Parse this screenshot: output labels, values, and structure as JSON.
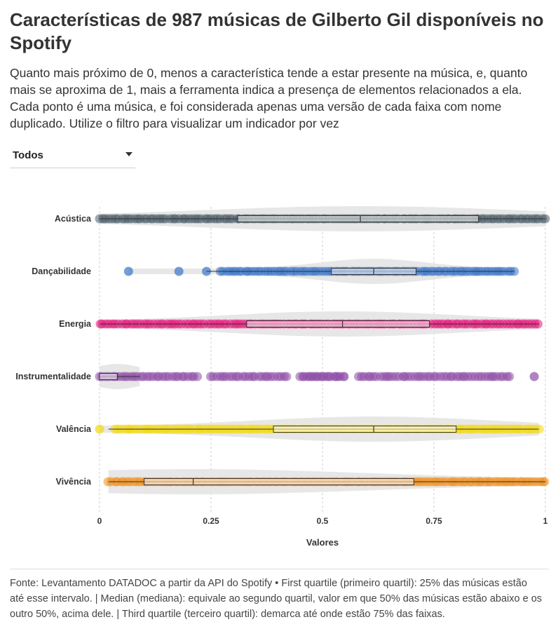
{
  "title": "Características de 987 músicas de Gilberto Gil disponíveis no Spotify",
  "subtitle": "Quanto mais próximo de 0, menos a característica tende a estar presente na música, e, quanto mais se aproxima de 1, mais a ferramenta indica a presença de elementos relacionados a ela. Cada ponto é uma música, e foi considerada apenas uma versão de cada faixa com nome duplicado. Utilize o filtro para visualizar um indicador por vez",
  "filter": {
    "selected": "Todos",
    "icon": "caret-down-icon"
  },
  "footer": "Fonte: Levantamento DATADOC a partir da API do Spotify • First quartile (primeiro quartil): 25% das músicas estão até esse intervalo. | Median (mediana): equivale ao segundo quartil, valor em que 50% das músicas estão abaixo e os outro 50%, acima dele. | Third quartile (terceiro quartil): demarca até onde estão 75% das faixas.",
  "chart_data": {
    "type": "boxplot-with-violin-and-points",
    "xlabel": "Valores",
    "xlim": [
      0,
      1
    ],
    "xticks": [
      0,
      0.25,
      0.5,
      0.75,
      1
    ],
    "xtick_labels": [
      "0",
      "0.25",
      "0.5",
      "0.75",
      "1"
    ],
    "grid": "vertical dashed",
    "series": [
      {
        "name": "Acústica",
        "color": "#4d5e69",
        "min": 0.0,
        "q1": 0.31,
        "median": 0.585,
        "q3": 0.85,
        "max": 1.0,
        "point_segments": [
          [
            0.0,
            1.0
          ]
        ],
        "isolated_points": []
      },
      {
        "name": "Dançabilidade",
        "color": "#3a75c4",
        "min": 0.24,
        "q1": 0.52,
        "median": 0.615,
        "q3": 0.71,
        "max": 0.93,
        "point_segments": [
          [
            0.27,
            0.93
          ]
        ],
        "isolated_points": [
          0.065,
          0.178,
          0.24
        ]
      },
      {
        "name": "Energia",
        "color": "#e5197b",
        "min": 0.0,
        "q1": 0.33,
        "median": 0.545,
        "q3": 0.74,
        "max": 0.985,
        "point_segments": [
          [
            0.0,
            0.985
          ]
        ],
        "isolated_points": []
      },
      {
        "name": "Instrumentalidade",
        "color": "#8e4fa8",
        "min": 0.0,
        "q1": 0.0,
        "median": 0.04,
        "q3": 0.04,
        "max": 0.09,
        "point_segments": [
          [
            0.0,
            0.22
          ],
          [
            0.25,
            0.42
          ],
          [
            0.45,
            0.55
          ],
          [
            0.58,
            0.92
          ]
        ],
        "isolated_points": [
          0.975
        ]
      },
      {
        "name": "Valência",
        "color": "#f4d90f",
        "min": 0.02,
        "q1": 0.39,
        "median": 0.615,
        "q3": 0.8,
        "max": 0.985,
        "point_segments": [
          [
            0.035,
            0.985
          ]
        ],
        "isolated_points": [
          0.0
        ]
      },
      {
        "name": "Vivência",
        "color": "#f0901e",
        "min": 0.02,
        "q1": 0.1,
        "median": 0.21,
        "q3": 0.705,
        "max": 1.0,
        "point_segments": [
          [
            0.02,
            1.0
          ]
        ],
        "isolated_points": []
      }
    ]
  }
}
